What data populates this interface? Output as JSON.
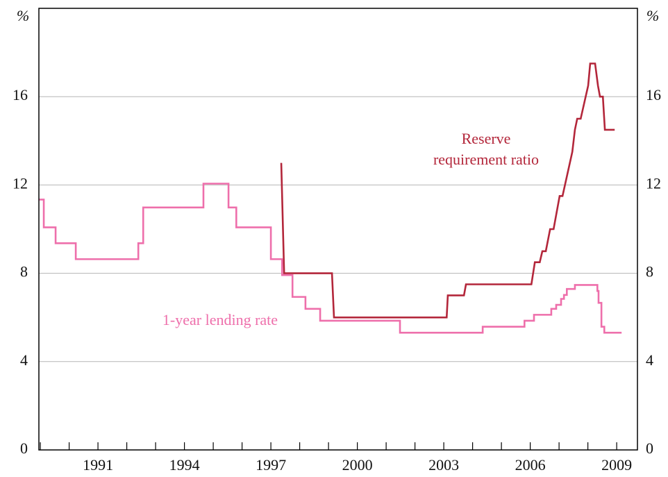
{
  "chart_data": {
    "type": "line",
    "y_unit_label": "%",
    "y2_unit_label": "%",
    "xlim": [
      1988.95,
      2009.72
    ],
    "xticks": [
      1991,
      1994,
      1997,
      2000,
      2003,
      2006,
      2009
    ],
    "xminorticks": [
      1989,
      1990,
      1991,
      1992,
      1993,
      1994,
      1995,
      1996,
      1997,
      1998,
      1999,
      2000,
      2001,
      2002,
      2003,
      2004,
      2005,
      2006,
      2007,
      2008,
      2009
    ],
    "ylim": [
      0,
      20
    ],
    "yticks": [
      0,
      4,
      8,
      12,
      16
    ],
    "y2lim": [
      0,
      20
    ],
    "y2ticks": [
      0,
      4,
      8,
      12,
      16
    ],
    "grid": true,
    "series": [
      {
        "name": "Reserve requirement ratio",
        "color": "#b3263a",
        "step": false,
        "x": [
          1997.36,
          1997.46,
          1999.12,
          1999.19,
          2003.1,
          2003.14,
          2003.7,
          2003.77,
          2006.04,
          2006.16,
          2006.33,
          2006.42,
          2006.54,
          2006.69,
          2006.81,
          2007.02,
          2007.12,
          2007.46,
          2007.55,
          2007.63,
          2007.75,
          2008.01,
          2008.08,
          2008.25,
          2008.35,
          2008.42,
          2008.52,
          2008.59,
          2008.93
        ],
        "values": [
          13,
          8,
          8,
          6,
          6,
          7,
          7,
          7.5,
          7.5,
          8.5,
          8.5,
          9,
          9,
          10,
          10,
          11.5,
          11.5,
          13.5,
          14.5,
          15,
          15,
          16.5,
          17.5,
          17.5,
          16.5,
          16,
          16,
          14.5,
          14.5
        ]
      },
      {
        "name": "1-year lending rate",
        "color": "#ee6fab",
        "step": true,
        "x": [
          1988.95,
          1989.12,
          1989.53,
          1990.23,
          1992.4,
          1992.57,
          1994.66,
          1995.53,
          1995.8,
          1997.0,
          1997.39,
          1997.75,
          1998.2,
          1998.71,
          2001.48,
          2004.35,
          2005.8,
          2006.13,
          2006.73,
          2006.9,
          2007.07,
          2007.17,
          2007.27,
          2007.55,
          2008.33,
          2008.37,
          2008.47,
          2008.57,
          2009.17
        ],
        "values": [
          11.34,
          10.08,
          9.36,
          8.64,
          9.36,
          10.98,
          12.06,
          10.98,
          10.08,
          8.64,
          7.92,
          6.93,
          6.39,
          5.85,
          5.31,
          5.58,
          5.85,
          6.12,
          6.39,
          6.57,
          6.84,
          7.02,
          7.29,
          7.47,
          7.2,
          6.66,
          5.58,
          5.31,
          5.31
        ]
      }
    ]
  }
}
